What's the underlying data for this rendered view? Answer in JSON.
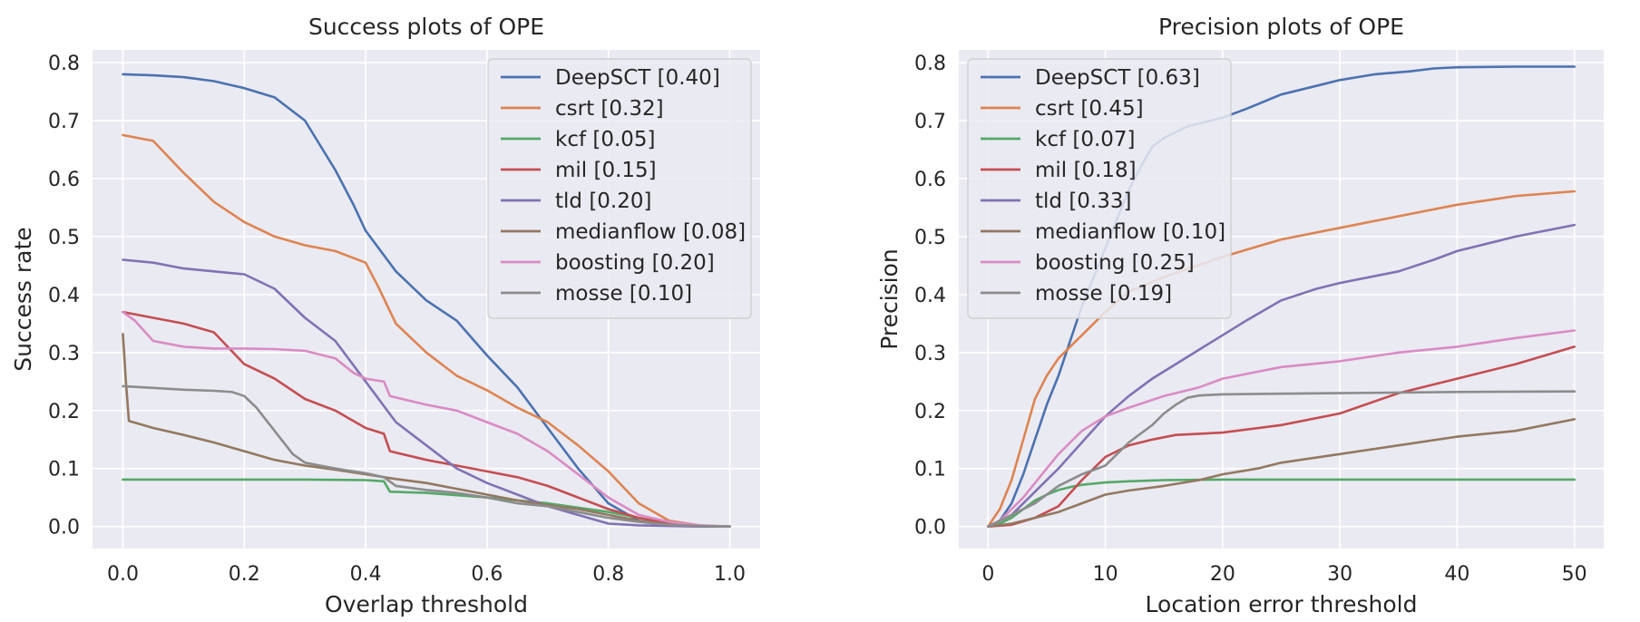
{
  "chart_data": [
    {
      "type": "line",
      "title": "Success plots of OPE",
      "xlabel": "Overlap threshold",
      "ylabel": "Success rate",
      "xlim": [
        -0.05,
        1.05
      ],
      "ylim": [
        -0.038,
        0.822
      ],
      "xticks": [
        0.0,
        0.2,
        0.4,
        0.6,
        0.8,
        1.0
      ],
      "xtick_labels": [
        "0.0",
        "0.2",
        "0.4",
        "0.6",
        "0.8",
        "1.0"
      ],
      "yticks": [
        0.0,
        0.1,
        0.2,
        0.3,
        0.4,
        0.5,
        0.6,
        0.7,
        0.8
      ],
      "ytick_labels": [
        "0.0",
        "0.1",
        "0.2",
        "0.3",
        "0.4",
        "0.5",
        "0.6",
        "0.7",
        "0.8"
      ],
      "grid": true,
      "legend_position": "top-right",
      "series": [
        {
          "name": "DeepSCT [0.40]",
          "color": "#4c72b0",
          "x": [
            0,
            0.05,
            0.1,
            0.15,
            0.2,
            0.25,
            0.3,
            0.35,
            0.38,
            0.4,
            0.45,
            0.5,
            0.55,
            0.6,
            0.65,
            0.7,
            0.75,
            0.8,
            0.85,
            0.9,
            0.95,
            1.0
          ],
          "y": [
            0.78,
            0.778,
            0.775,
            0.768,
            0.756,
            0.74,
            0.7,
            0.615,
            0.555,
            0.51,
            0.44,
            0.39,
            0.355,
            0.295,
            0.24,
            0.17,
            0.1,
            0.04,
            0.01,
            0.002,
            0.001,
            0.0
          ]
        },
        {
          "name": "csrt [0.32]",
          "color": "#dd8452",
          "x": [
            0,
            0.05,
            0.1,
            0.15,
            0.2,
            0.25,
            0.3,
            0.35,
            0.4,
            0.42,
            0.45,
            0.5,
            0.55,
            0.6,
            0.65,
            0.7,
            0.75,
            0.8,
            0.85,
            0.9,
            0.95,
            1.0
          ],
          "y": [
            0.675,
            0.665,
            0.61,
            0.56,
            0.525,
            0.5,
            0.485,
            0.475,
            0.455,
            0.415,
            0.35,
            0.3,
            0.26,
            0.235,
            0.205,
            0.18,
            0.14,
            0.095,
            0.04,
            0.01,
            0.002,
            0.0
          ]
        },
        {
          "name": "kcf [0.05]",
          "color": "#55a868",
          "x": [
            0,
            0.1,
            0.2,
            0.3,
            0.4,
            0.43,
            0.44,
            0.5,
            0.6,
            0.7,
            0.8,
            0.85,
            0.9,
            0.95,
            1.0
          ],
          "y": [
            0.081,
            0.081,
            0.081,
            0.081,
            0.08,
            0.078,
            0.06,
            0.058,
            0.05,
            0.04,
            0.025,
            0.015,
            0.005,
            0.001,
            0.0
          ]
        },
        {
          "name": "mil [0.15]",
          "color": "#c44e52",
          "x": [
            0,
            0.05,
            0.1,
            0.15,
            0.2,
            0.25,
            0.3,
            0.35,
            0.4,
            0.43,
            0.44,
            0.5,
            0.55,
            0.6,
            0.65,
            0.7,
            0.75,
            0.8,
            0.85,
            0.9,
            0.95,
            1.0
          ],
          "y": [
            0.37,
            0.36,
            0.35,
            0.335,
            0.28,
            0.255,
            0.22,
            0.2,
            0.17,
            0.16,
            0.13,
            0.115,
            0.105,
            0.095,
            0.085,
            0.07,
            0.05,
            0.03,
            0.015,
            0.005,
            0.001,
            0.0
          ]
        },
        {
          "name": "tld [0.20]",
          "color": "#8172b3",
          "x": [
            0,
            0.05,
            0.1,
            0.15,
            0.2,
            0.25,
            0.3,
            0.35,
            0.4,
            0.45,
            0.5,
            0.55,
            0.6,
            0.65,
            0.7,
            0.75,
            0.8,
            0.85,
            0.9,
            0.95,
            1.0
          ],
          "y": [
            0.46,
            0.455,
            0.445,
            0.44,
            0.435,
            0.41,
            0.36,
            0.32,
            0.25,
            0.18,
            0.14,
            0.1,
            0.075,
            0.055,
            0.035,
            0.02,
            0.005,
            0.002,
            0.001,
            0.0,
            0.0
          ]
        },
        {
          "name": "medianflow [0.08]",
          "color": "#937860",
          "x": [
            0,
            0.005,
            0.01,
            0.05,
            0.1,
            0.15,
            0.2,
            0.25,
            0.3,
            0.35,
            0.4,
            0.45,
            0.5,
            0.55,
            0.6,
            0.65,
            0.7,
            0.75,
            0.8,
            0.85,
            0.9,
            0.95,
            1.0
          ],
          "y": [
            0.332,
            0.25,
            0.182,
            0.17,
            0.158,
            0.145,
            0.13,
            0.115,
            0.105,
            0.098,
            0.09,
            0.082,
            0.075,
            0.065,
            0.055,
            0.045,
            0.037,
            0.03,
            0.02,
            0.01,
            0.003,
            0.001,
            0.0
          ]
        },
        {
          "name": "boosting [0.20]",
          "color": "#da8bc3",
          "x": [
            0,
            0.02,
            0.05,
            0.1,
            0.15,
            0.2,
            0.25,
            0.3,
            0.35,
            0.38,
            0.4,
            0.43,
            0.44,
            0.5,
            0.55,
            0.6,
            0.65,
            0.7,
            0.75,
            0.8,
            0.85,
            0.9,
            0.95,
            1.0
          ],
          "y": [
            0.37,
            0.355,
            0.32,
            0.31,
            0.307,
            0.307,
            0.306,
            0.303,
            0.29,
            0.265,
            0.255,
            0.25,
            0.225,
            0.21,
            0.2,
            0.18,
            0.16,
            0.13,
            0.09,
            0.05,
            0.02,
            0.008,
            0.002,
            0.0
          ]
        },
        {
          "name": "mosse [0.10]",
          "color": "#8c8c8c",
          "x": [
            0,
            0.05,
            0.1,
            0.15,
            0.18,
            0.2,
            0.22,
            0.25,
            0.28,
            0.3,
            0.35,
            0.4,
            0.43,
            0.45,
            0.5,
            0.55,
            0.6,
            0.65,
            0.7,
            0.75,
            0.8,
            0.85,
            0.9,
            0.95,
            1.0
          ],
          "y": [
            0.242,
            0.239,
            0.236,
            0.234,
            0.232,
            0.225,
            0.205,
            0.165,
            0.125,
            0.11,
            0.1,
            0.092,
            0.085,
            0.07,
            0.063,
            0.058,
            0.05,
            0.04,
            0.035,
            0.025,
            0.015,
            0.008,
            0.003,
            0.001,
            0.0
          ]
        }
      ]
    },
    {
      "type": "line",
      "title": "Precision plots of OPE",
      "xlabel": "Location error threshold",
      "ylabel": "Precision",
      "xlim": [
        -2.5,
        52.5
      ],
      "ylim": [
        -0.038,
        0.822
      ],
      "xticks": [
        0,
        10,
        20,
        30,
        40,
        50
      ],
      "xtick_labels": [
        "0",
        "10",
        "20",
        "30",
        "40",
        "50"
      ],
      "yticks": [
        0.0,
        0.1,
        0.2,
        0.3,
        0.4,
        0.5,
        0.6,
        0.7,
        0.8
      ],
      "ytick_labels": [
        "0.0",
        "0.1",
        "0.2",
        "0.3",
        "0.4",
        "0.5",
        "0.6",
        "0.7",
        "0.8"
      ],
      "grid": true,
      "legend_position": "top-left",
      "series": [
        {
          "name": "DeepSCT [0.63]",
          "color": "#4c72b0",
          "x": [
            0,
            1,
            2,
            3,
            4,
            5,
            6,
            7,
            8,
            9,
            10,
            11,
            12,
            13,
            14,
            15,
            17,
            20,
            22,
            25,
            28,
            30,
            33,
            36,
            38,
            40,
            45,
            50
          ],
          "y": [
            0.0,
            0.01,
            0.04,
            0.09,
            0.15,
            0.21,
            0.26,
            0.32,
            0.38,
            0.43,
            0.48,
            0.53,
            0.58,
            0.62,
            0.655,
            0.67,
            0.69,
            0.705,
            0.72,
            0.745,
            0.76,
            0.77,
            0.78,
            0.785,
            0.79,
            0.792,
            0.793,
            0.793
          ]
        },
        {
          "name": "csrt [0.45]",
          "color": "#dd8452",
          "x": [
            0,
            1,
            2,
            3,
            4,
            5,
            6,
            7,
            8,
            10,
            12,
            15,
            20,
            25,
            30,
            35,
            40,
            45,
            50
          ],
          "y": [
            0.0,
            0.03,
            0.08,
            0.15,
            0.22,
            0.26,
            0.29,
            0.31,
            0.33,
            0.37,
            0.405,
            0.43,
            0.465,
            0.495,
            0.515,
            0.535,
            0.555,
            0.57,
            0.578
          ]
        },
        {
          "name": "kcf [0.07]",
          "color": "#55a868",
          "x": [
            0,
            1,
            2,
            3,
            4,
            5,
            6,
            7,
            8,
            10,
            12,
            15,
            20,
            30,
            40,
            50
          ],
          "y": [
            0.0,
            0.005,
            0.015,
            0.03,
            0.045,
            0.055,
            0.063,
            0.068,
            0.072,
            0.076,
            0.078,
            0.08,
            0.081,
            0.081,
            0.081,
            0.081
          ]
        },
        {
          "name": "mil [0.18]",
          "color": "#c44e52",
          "x": [
            0,
            2,
            4,
            6,
            8,
            10,
            12,
            14,
            16,
            18,
            20,
            25,
            30,
            35,
            40,
            45,
            50
          ],
          "y": [
            0.0,
            0.003,
            0.015,
            0.035,
            0.08,
            0.12,
            0.14,
            0.15,
            0.158,
            0.16,
            0.162,
            0.175,
            0.195,
            0.23,
            0.255,
            0.28,
            0.31
          ]
        },
        {
          "name": "tld [0.33]",
          "color": "#8172b3",
          "x": [
            0,
            2,
            4,
            6,
            8,
            10,
            12,
            14,
            16,
            18,
            20,
            22,
            25,
            28,
            30,
            35,
            38,
            40,
            45,
            50
          ],
          "y": [
            0.0,
            0.02,
            0.06,
            0.1,
            0.145,
            0.19,
            0.225,
            0.255,
            0.28,
            0.305,
            0.33,
            0.355,
            0.39,
            0.41,
            0.42,
            0.44,
            0.46,
            0.475,
            0.5,
            0.52
          ]
        },
        {
          "name": "medianflow [0.10]",
          "color": "#937860",
          "x": [
            0,
            2,
            4,
            6,
            8,
            10,
            12,
            15,
            18,
            20,
            23,
            25,
            30,
            35,
            40,
            45,
            50
          ],
          "y": [
            0.0,
            0.005,
            0.015,
            0.025,
            0.04,
            0.055,
            0.062,
            0.07,
            0.08,
            0.09,
            0.1,
            0.11,
            0.125,
            0.14,
            0.155,
            0.165,
            0.185
          ]
        },
        {
          "name": "boosting [0.25]",
          "color": "#da8bc3",
          "x": [
            0,
            1,
            2,
            3,
            4,
            5,
            6,
            7,
            8,
            10,
            12,
            15,
            18,
            20,
            25,
            30,
            35,
            40,
            45,
            50
          ],
          "y": [
            0.0,
            0.01,
            0.03,
            0.05,
            0.075,
            0.1,
            0.125,
            0.145,
            0.165,
            0.19,
            0.205,
            0.225,
            0.24,
            0.255,
            0.275,
            0.285,
            0.3,
            0.31,
            0.325,
            0.338
          ]
        },
        {
          "name": "mosse [0.19]",
          "color": "#8c8c8c",
          "x": [
            0,
            2,
            4,
            6,
            8,
            10,
            12,
            14,
            15,
            16,
            17,
            18,
            20,
            25,
            30,
            40,
            50
          ],
          "y": [
            0.0,
            0.02,
            0.04,
            0.07,
            0.09,
            0.105,
            0.145,
            0.175,
            0.195,
            0.21,
            0.222,
            0.226,
            0.228,
            0.229,
            0.23,
            0.232,
            0.233
          ]
        }
      ]
    }
  ]
}
